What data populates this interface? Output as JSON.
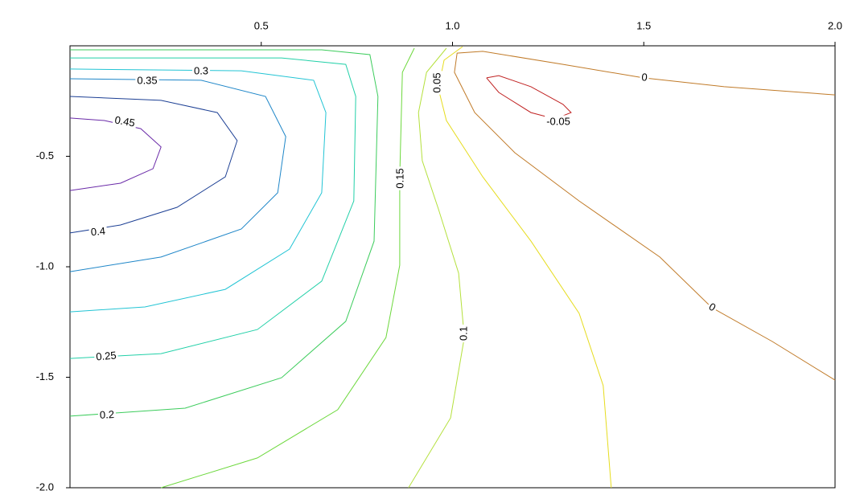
{
  "chart_data": {
    "type": "contour",
    "xlim": [
      0,
      2
    ],
    "ylim": [
      -2,
      0
    ],
    "xticks": [
      0.5,
      {
        "value": 1,
        "label": "1.0"
      },
      1.5,
      {
        "value": 2,
        "label": "2.0"
      }
    ],
    "yticks": [
      -0.5,
      {
        "value": -1,
        "label": "-1.0"
      },
      -1.5,
      {
        "value": -2,
        "label": "-2.0"
      }
    ],
    "lines": [
      {
        "level": 0.45,
        "color": "#6a2aa8",
        "x": [
          0,
          0.09,
          0.185,
          0.238,
          0.217,
          0.132,
          0
        ],
        "y": [
          -0.327,
          -0.338,
          -0.375,
          -0.458,
          -0.556,
          -0.622,
          -0.655
        ]
      },
      {
        "level": 0.4,
        "color": "#1c3f94",
        "x": [
          0,
          0.238,
          0.385,
          0.437,
          0.406,
          0.28,
          0.132,
          0
        ],
        "y": [
          -0.229,
          -0.247,
          -0.302,
          -0.429,
          -0.593,
          -0.731,
          -0.811,
          -0.847
        ]
      },
      {
        "level": 0.35,
        "color": "#1e86c8",
        "x": [
          0,
          0.343,
          0.511,
          0.564,
          0.543,
          0.448,
          0.238,
          0
        ],
        "y": [
          -0.149,
          -0.156,
          -0.229,
          -0.411,
          -0.665,
          -0.829,
          -0.956,
          -1.022
        ]
      },
      {
        "level": 0.3,
        "color": "#22c4d4",
        "x": [
          0,
          0.448,
          0.637,
          0.669,
          0.658,
          0.574,
          0.406,
          0.196,
          0
        ],
        "y": [
          -0.105,
          -0.113,
          -0.156,
          -0.302,
          -0.665,
          -0.92,
          -1.102,
          -1.182,
          -1.204
        ]
      },
      {
        "level": 0.25,
        "color": "#22d0a8",
        "x": [
          0,
          0.553,
          0.721,
          0.747,
          0.742,
          0.658,
          0.49,
          0.238,
          0
        ],
        "y": [
          -0.055,
          -0.055,
          -0.084,
          -0.229,
          -0.702,
          -1.065,
          -1.284,
          -1.393,
          -1.415
        ]
      },
      {
        "level": 0.2,
        "color": "#3ccc5c",
        "x": [
          0,
          0.658,
          0.784,
          0.805,
          0.795,
          0.721,
          0.553,
          0.301,
          0
        ],
        "y": [
          -0.018,
          -0.018,
          -0.04,
          -0.229,
          -0.884,
          -1.247,
          -1.502,
          -1.64,
          -1.676
        ]
      },
      {
        "level": 0.15,
        "color": "#6cd83c",
        "x": [
          0.9,
          0.869,
          0.862,
          0.862,
          0.826,
          0.7,
          0.49,
          0.238
        ],
        "y": [
          -0.011,
          -0.12,
          -0.593,
          -0.993,
          -1.32,
          -1.647,
          -1.865,
          -2
        ]
      },
      {
        "level": 0.1,
        "color": "#b4e03c",
        "x": [
          0.984,
          0.932,
          0.911,
          0.921,
          0.963,
          1.016,
          1.031,
          0.995,
          0.885
        ],
        "y": [
          -0.011,
          -0.12,
          -0.302,
          -0.52,
          -0.738,
          -1.029,
          -1.32,
          -1.684,
          -2
        ]
      },
      {
        "level": 0.05,
        "color": "#e6dc1e",
        "x": [
          1.026,
          0.978,
          0.963,
          0.984,
          1.079,
          1.205,
          1.331,
          1.394,
          1.415
        ],
        "y": [
          -0.004,
          -0.065,
          -0.193,
          -0.338,
          -0.593,
          -0.884,
          -1.211,
          -1.538,
          -2
        ]
      },
      {
        "level": 0,
        "color": "#c07a28",
        "x": [
          2,
          1.71,
          1.499,
          1.289,
          1.079,
          1.012,
          1.005,
          1.058,
          1.163,
          1.331,
          1.542,
          1.678,
          1.836,
          2
        ],
        "y": [
          -0.222,
          -0.185,
          -0.145,
          -0.084,
          -0.025,
          -0.033,
          -0.12,
          -0.302,
          -0.484,
          -0.702,
          -0.956,
          -1.185,
          -1.338,
          -1.513
        ]
      },
      {
        "level": -0.05,
        "color": "#c02222",
        "x": [
          1.089,
          1.121,
          1.205,
          1.289,
          1.31,
          1.268,
          1.205,
          1.121,
          1.089
        ],
        "y": [
          -0.145,
          -0.135,
          -0.185,
          -0.265,
          -0.302,
          -0.331,
          -0.302,
          -0.211,
          -0.145
        ]
      }
    ]
  }
}
